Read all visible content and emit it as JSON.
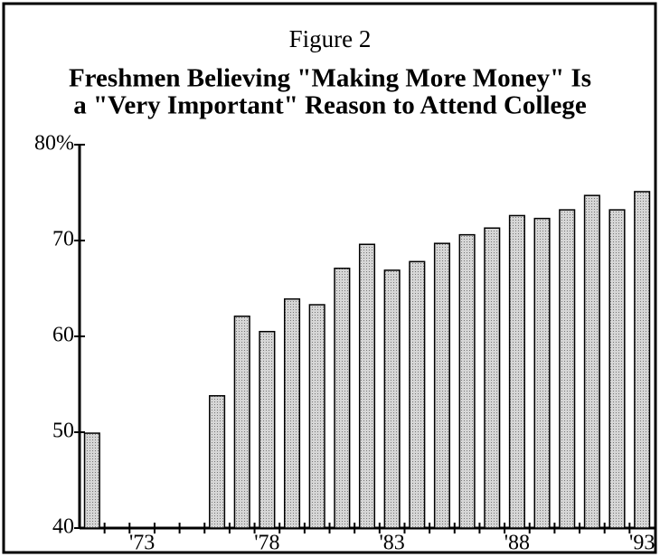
{
  "chart_data": {
    "type": "bar",
    "subtitle": "Figure 2",
    "title": [
      "Freshmen Believing \"Making More Money\" Is",
      "a \"Very Important\" Reason to Attend College"
    ],
    "categories": [
      null,
      null,
      "'73",
      null,
      null,
      null,
      null,
      "'78",
      null,
      null,
      null,
      null,
      "'83",
      null,
      null,
      null,
      null,
      "'88",
      null,
      null,
      null,
      null,
      "'93"
    ],
    "values": [
      49.9,
      null,
      null,
      null,
      null,
      53.8,
      62.1,
      60.5,
      63.9,
      63.3,
      67.1,
      69.6,
      66.9,
      67.8,
      69.7,
      70.6,
      71.3,
      72.6,
      72.3,
      73.2,
      74.7,
      73.2,
      75.1
    ],
    "color": "#cccccc",
    "ylim": [
      40,
      80
    ],
    "yticks": [
      40,
      50,
      60,
      70,
      {
        "value": 80,
        "label": "80%"
      }
    ]
  }
}
